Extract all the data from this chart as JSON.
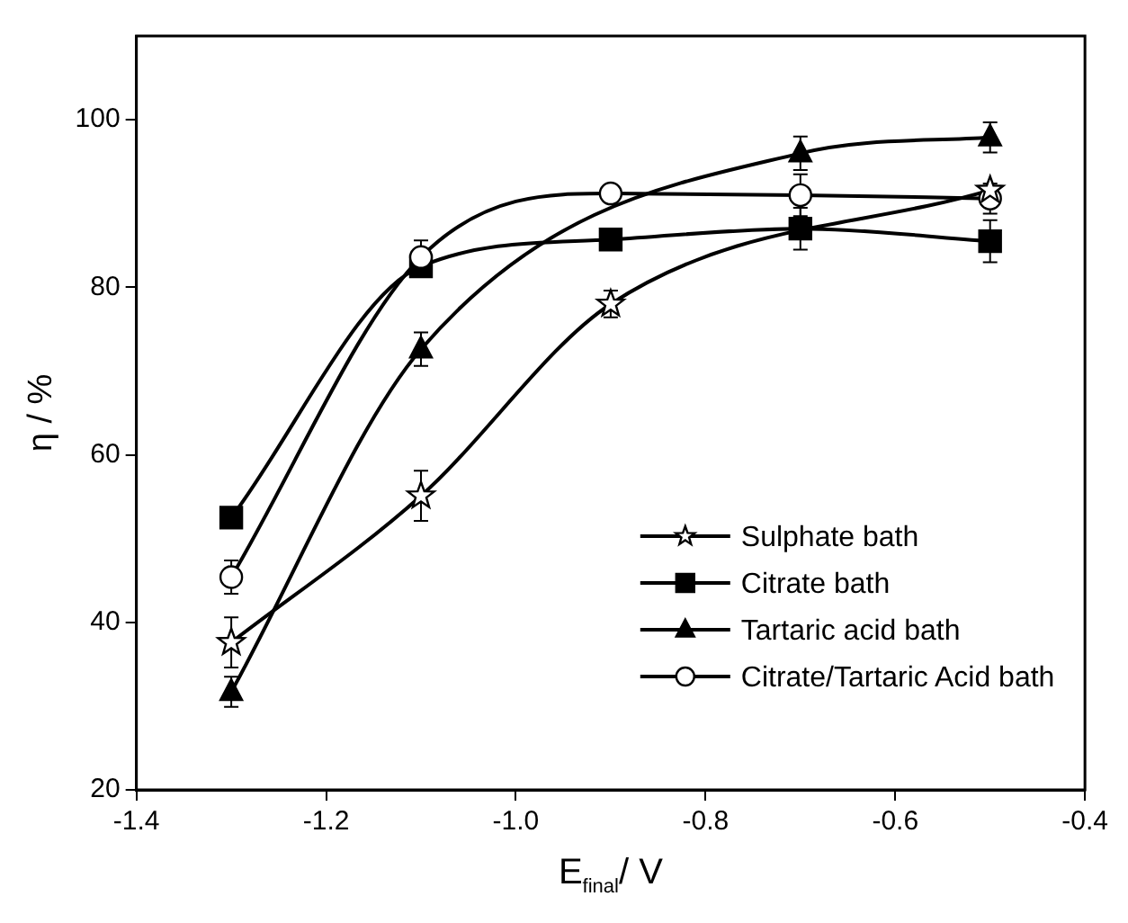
{
  "chart_data": {
    "type": "line",
    "xlabel": "E$_{final}$/ V",
    "ylabel": "η / %",
    "x": [
      -1.3,
      -1.1,
      -0.9,
      -0.7,
      -0.5
    ],
    "series": [
      {
        "name": "Sulphate bath",
        "color": "#000000",
        "marker": "star",
        "values": [
          37.6,
          55.1,
          78,
          null,
          91.6
        ],
        "errors": [
          3,
          3,
          1.6,
          null,
          null
        ]
      },
      {
        "name": "Citrate bath",
        "color": "#000000",
        "marker": "square",
        "values": [
          52.5,
          82.5,
          85.7,
          87,
          85.5
        ],
        "errors": [
          null,
          null,
          null,
          2.5,
          2.5
        ]
      },
      {
        "name": "Tartaric acid bath",
        "color": "#000000",
        "marker": "triangle",
        "values": [
          31.7,
          72.6,
          null,
          96,
          97.9
        ],
        "errors": [
          1.8,
          2,
          null,
          2,
          1.8
        ]
      },
      {
        "name": "Citrate/Tartaric Acid bath",
        "color": "#000000",
        "marker": "circle",
        "values": [
          45.4,
          83.6,
          91.2,
          91,
          90.6
        ],
        "errors": [
          2,
          2,
          null,
          2.5,
          1.8
        ]
      }
    ],
    "xlim": [
      -1.4,
      -0.4
    ],
    "xticks": [
      -1.4,
      -1.2,
      {
        "value": -1.0,
        "label": "-1.0"
      },
      -0.8,
      -0.6,
      -0.4
    ],
    "ylim": [
      20,
      110
    ],
    "yticks": [
      20,
      40,
      60,
      80,
      100
    ],
    "grid": false,
    "legend": "bottom right"
  }
}
